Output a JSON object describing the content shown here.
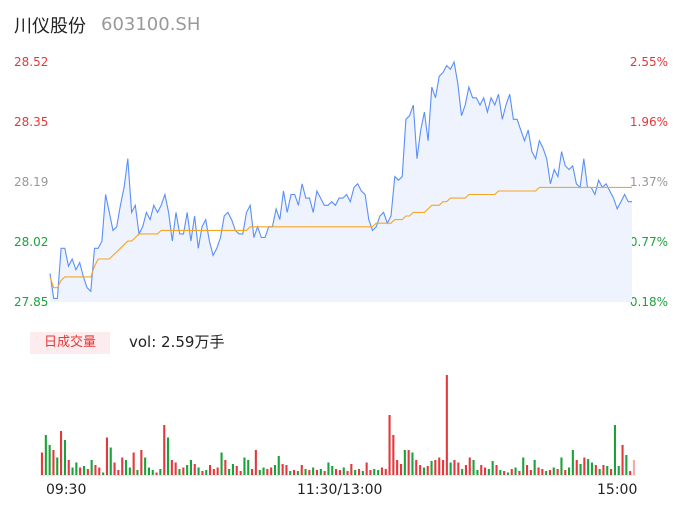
{
  "header": {
    "name": "川仪股份",
    "code": "603100.SH"
  },
  "volume_panel": {
    "badge": "日成交量",
    "vol_label": "vol: 2.59万手"
  },
  "colors": {
    "price_line": "#5b8ff9",
    "area_fill": "#eef3fd",
    "avg_line": "#f5a623",
    "up": "#e4393c",
    "down": "#1aa339",
    "flat": "#999999"
  },
  "chart_data": [
    {
      "type": "line",
      "title": "",
      "xlabel": "",
      "ylabel": "",
      "y_ticks_left": [
        "28.52",
        "28.35",
        "28.19",
        "28.02",
        "27.85"
      ],
      "y_ticks_right": [
        "2.55%",
        "1.96%",
        "1.37%",
        "0.77%",
        "0.18%"
      ],
      "ylim": [
        27.85,
        28.52
      ],
      "grid": false,
      "area_fill": true,
      "x_labels": [
        "09:30",
        "11:30/13:00",
        "15:00"
      ],
      "series": [
        {
          "role": "price",
          "values": [
            27.93,
            27.86,
            27.86,
            28.0,
            28.0,
            27.95,
            27.97,
            27.94,
            27.96,
            27.92,
            27.89,
            27.88,
            28.0,
            28.0,
            28.02,
            28.15,
            28.1,
            28.05,
            28.06,
            28.12,
            28.17,
            28.25,
            28.1,
            28.12,
            28.04,
            28.06,
            28.1,
            28.08,
            28.12,
            28.1,
            28.12,
            28.15,
            28.1,
            28.02,
            28.1,
            28.04,
            28.04,
            28.1,
            28.02,
            28.09,
            28.0,
            28.06,
            28.08,
            28.02,
            27.98,
            28.0,
            28.03,
            28.09,
            28.1,
            28.08,
            28.05,
            28.04,
            28.04,
            28.1,
            28.12,
            28.03,
            28.06,
            28.03,
            28.03,
            28.06,
            28.06,
            28.11,
            28.08,
            28.16,
            28.1,
            28.15,
            28.15,
            28.12,
            28.18,
            28.14,
            28.14,
            28.1,
            28.16,
            28.14,
            28.12,
            28.12,
            28.13,
            28.12,
            28.14,
            28.14,
            28.15,
            28.13,
            28.17,
            28.18,
            28.16,
            28.15,
            28.08,
            28.05,
            28.06,
            28.09,
            28.1,
            28.07,
            28.09,
            28.2,
            28.19,
            28.2,
            28.36,
            28.37,
            28.4,
            28.25,
            28.33,
            28.38,
            28.3,
            28.45,
            28.42,
            28.48,
            28.49,
            28.51,
            28.5,
            28.52,
            28.46,
            28.37,
            28.4,
            28.45,
            28.42,
            28.42,
            28.4,
            28.42,
            28.38,
            28.42,
            28.4,
            28.43,
            28.36,
            28.4,
            28.43,
            28.36,
            28.36,
            28.33,
            28.3,
            28.33,
            28.27,
            28.25,
            28.3,
            28.28,
            28.25,
            28.18,
            28.22,
            28.2,
            28.27,
            28.23,
            28.22,
            28.23,
            28.18,
            28.17,
            28.25,
            28.17,
            28.17,
            28.15,
            28.19,
            28.17,
            28.18,
            28.16,
            28.14,
            28.11,
            28.13,
            28.15,
            28.13,
            28.13
          ]
        },
        {
          "role": "average",
          "values": [
            27.92,
            27.89,
            27.89,
            27.91,
            27.92,
            27.92,
            27.92,
            27.92,
            27.92,
            27.92,
            27.92,
            27.92,
            27.95,
            27.97,
            27.97,
            27.97,
            27.97,
            27.98,
            27.99,
            28.0,
            28.01,
            28.02,
            28.02,
            28.03,
            28.04,
            28.04,
            28.04,
            28.04,
            28.04,
            28.04,
            28.05,
            28.05,
            28.05,
            28.05,
            28.05,
            28.05,
            28.05,
            28.05,
            28.05,
            28.05,
            28.05,
            28.05,
            28.05,
            28.05,
            28.05,
            28.05,
            28.05,
            28.05,
            28.05,
            28.05,
            28.05,
            28.05,
            28.05,
            28.05,
            28.06,
            28.06,
            28.06,
            28.06,
            28.06,
            28.06,
            28.06,
            28.06,
            28.06,
            28.06,
            28.06,
            28.06,
            28.06,
            28.06,
            28.06,
            28.06,
            28.06,
            28.06,
            28.06,
            28.06,
            28.06,
            28.06,
            28.06,
            28.06,
            28.06,
            28.06,
            28.06,
            28.06,
            28.06,
            28.06,
            28.06,
            28.06,
            28.06,
            28.06,
            28.07,
            28.07,
            28.07,
            28.07,
            28.07,
            28.08,
            28.08,
            28.08,
            28.09,
            28.09,
            28.1,
            28.1,
            28.1,
            28.1,
            28.11,
            28.12,
            28.12,
            28.12,
            28.13,
            28.13,
            28.14,
            28.14,
            28.14,
            28.14,
            28.14,
            28.15,
            28.15,
            28.15,
            28.15,
            28.15,
            28.15,
            28.15,
            28.15,
            28.16,
            28.16,
            28.16,
            28.16,
            28.16,
            28.16,
            28.16,
            28.16,
            28.16,
            28.16,
            28.16,
            28.17,
            28.17,
            28.17,
            28.17,
            28.17,
            28.17,
            28.17,
            28.17,
            28.17,
            28.17,
            28.17,
            28.17,
            28.17,
            28.17,
            28.17,
            28.17,
            28.17,
            28.17,
            28.17,
            28.17,
            28.17,
            28.17,
            28.17,
            28.17,
            28.17,
            28.17
          ]
        }
      ]
    },
    {
      "type": "bar",
      "title": "",
      "volumes": [
        0.45,
        0.8,
        0.6,
        0.5,
        0.35,
        0.88,
        0.7,
        0.3,
        0.15,
        0.25,
        0.15,
        0.18,
        0.12,
        0.3,
        0.2,
        0.15,
        0.05,
        0.75,
        0.55,
        0.25,
        0.1,
        0.35,
        0.3,
        0.15,
        0.45,
        0.1,
        0.5,
        0.35,
        0.15,
        0.1,
        0.05,
        0.12,
        1.0,
        0.75,
        0.3,
        0.25,
        0.12,
        0.15,
        0.2,
        0.3,
        0.22,
        0.15,
        0.08,
        0.1,
        0.2,
        0.12,
        0.15,
        0.45,
        0.3,
        0.12,
        0.22,
        0.18,
        0.08,
        0.35,
        0.3,
        0.12,
        0.5,
        0.1,
        0.15,
        0.12,
        0.15,
        0.2,
        0.38,
        0.22,
        0.2,
        0.08,
        0.1,
        0.08,
        0.2,
        0.12,
        0.1,
        0.15,
        0.1,
        0.12,
        0.08,
        0.25,
        0.18,
        0.12,
        0.1,
        0.15,
        0.08,
        0.22,
        0.1,
        0.12,
        0.08,
        0.25,
        0.1,
        0.12,
        0.1,
        0.15,
        0.12,
        1.2,
        0.8,
        0.3,
        0.22,
        0.5,
        0.5,
        0.45,
        0.3,
        0.2,
        0.15,
        0.18,
        0.28,
        0.3,
        0.35,
        0.3,
        2.0,
        0.25,
        0.3,
        0.25,
        0.12,
        0.2,
        0.35,
        0.3,
        0.1,
        0.2,
        0.15,
        0.12,
        0.28,
        0.2,
        0.1,
        0.08,
        0.05,
        0.12,
        0.15,
        0.08,
        0.35,
        0.2,
        0.1,
        0.3,
        0.15,
        0.12,
        0.08,
        0.1,
        0.15,
        0.12,
        0.35,
        0.1,
        0.15,
        0.5,
        0.3,
        0.22,
        0.35,
        0.32,
        0.25,
        0.2,
        0.12,
        0.2,
        0.18,
        0.12,
        1.0,
        0.18,
        0.6,
        0.4,
        0.08,
        0.3
      ],
      "directions": [
        "up",
        "down",
        "down",
        "up",
        "down",
        "up",
        "down",
        "up",
        "down",
        "down",
        "up",
        "down",
        "up",
        "down",
        "up",
        "up",
        "down",
        "up",
        "down",
        "up",
        "up",
        "up",
        "down",
        "down",
        "up",
        "down",
        "up",
        "down",
        "down",
        "down",
        "up",
        "down",
        "up",
        "down",
        "up",
        "up",
        "down",
        "up",
        "down",
        "down",
        "up",
        "down",
        "up",
        "down",
        "up",
        "up",
        "up",
        "down",
        "up",
        "down",
        "down",
        "up",
        "up",
        "down",
        "down",
        "up",
        "up",
        "down",
        "down",
        "up",
        "up",
        "down",
        "down",
        "up",
        "up",
        "down",
        "up",
        "down",
        "up",
        "down",
        "up",
        "down",
        "up",
        "down",
        "up",
        "down",
        "down",
        "up",
        "up",
        "down",
        "up",
        "up",
        "down",
        "up",
        "down",
        "up",
        "up",
        "down",
        "down",
        "up",
        "up",
        "up",
        "up",
        "up",
        "up",
        "down",
        "up",
        "down",
        "up",
        "up",
        "down",
        "up",
        "down",
        "up",
        "up",
        "up",
        "up",
        "down",
        "up",
        "up",
        "down",
        "up",
        "up",
        "down",
        "down",
        "up",
        "up",
        "down",
        "down",
        "up",
        "down",
        "up",
        "down",
        "up",
        "down",
        "up",
        "down",
        "up",
        "up",
        "down",
        "up",
        "up",
        "down",
        "up",
        "down",
        "up",
        "down",
        "up",
        "down",
        "down",
        "up",
        "down",
        "up",
        "down",
        "down",
        "up",
        "down",
        "up",
        "down",
        "up",
        "down",
        "down",
        "up",
        "down",
        "up",
        "flat"
      ]
    }
  ]
}
